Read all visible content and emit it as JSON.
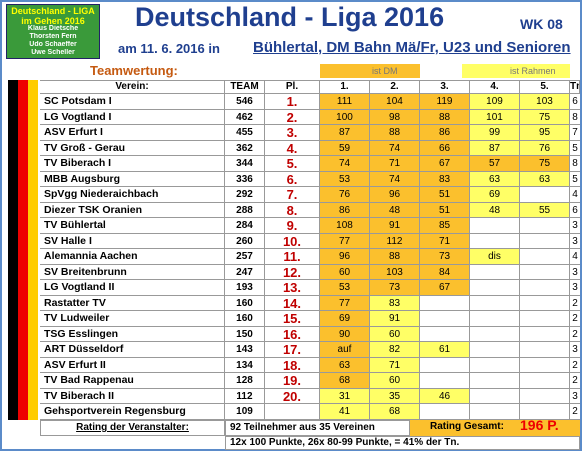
{
  "header": {
    "logo_lines": [
      "Deutschland - LIGA",
      "im Gehen 2016",
      "Klaus Dietsche",
      "Thorsten Fern",
      "Udo Schaeffer",
      "Uwe Scheller"
    ],
    "title": "Deutschland - Liga 2016",
    "wk": "WK 08",
    "date": "am 11. 6. 2016  in",
    "venue": "Bühlertal, DM Bahn Mä/Fr, U23 und Senioren"
  },
  "legend": {
    "label": "Teamwertung:",
    "dm": "ist DM",
    "rahmen": "ist Rahmen"
  },
  "table": {
    "columns": [
      "Verein:",
      "TEAM",
      "Pl.",
      "1.",
      "2.",
      "3.",
      "4.",
      "5.",
      "Tn."
    ],
    "rows": [
      [
        "SC Potsdam I",
        546,
        "1.",
        111,
        104,
        119,
        109,
        103,
        6
      ],
      [
        "LG Vogtland I",
        462,
        "2.",
        100,
        98,
        88,
        101,
        75,
        8
      ],
      [
        "ASV Erfurt I",
        455,
        "3.",
        87,
        88,
        86,
        99,
        95,
        7
      ],
      [
        "TV Groß - Gerau",
        362,
        "4.",
        59,
        74,
        66,
        87,
        76,
        5
      ],
      [
        "TV Biberach I",
        344,
        "5.",
        74,
        71,
        67,
        57,
        75,
        8
      ],
      [
        "MBB Augsburg",
        336,
        "6.",
        53,
        74,
        83,
        63,
        63,
        5
      ],
      [
        "SpVgg Niederaichbach",
        292,
        "7.",
        76,
        96,
        51,
        69,
        null,
        4
      ],
      [
        "Diezer TSK Oranien",
        288,
        "8.",
        86,
        48,
        51,
        48,
        55,
        6
      ],
      [
        "TV Bühlertal",
        284,
        "9.",
        108,
        91,
        85,
        null,
        null,
        3
      ],
      [
        "SV Halle I",
        260,
        "10.",
        77,
        112,
        71,
        null,
        null,
        3
      ],
      [
        "Alemannia Aachen",
        257,
        "11.",
        96,
        88,
        73,
        "dis",
        null,
        4
      ],
      [
        "SV Breitenbrunn",
        247,
        "12.",
        60,
        103,
        84,
        null,
        null,
        3
      ],
      [
        "LG Vogtland II",
        193,
        "13.",
        53,
        73,
        67,
        null,
        null,
        3
      ],
      [
        "Rastatter TV",
        160,
        "14.",
        77,
        83,
        null,
        null,
        null,
        2
      ],
      [
        "TV Ludweiler",
        160,
        "15.",
        69,
        91,
        null,
        null,
        null,
        2
      ],
      [
        "TSG Esslingen",
        150,
        "16.",
        90,
        60,
        null,
        null,
        null,
        2
      ],
      [
        "ART Düsseldorf",
        143,
        "17.",
        "auf",
        82,
        61,
        null,
        null,
        3
      ],
      [
        "ASV Erfurt II",
        134,
        "18.",
        63,
        71,
        null,
        null,
        null,
        2
      ],
      [
        "TV Bad Rappenau",
        128,
        "19.",
        68,
        60,
        null,
        null,
        null,
        2
      ],
      [
        "TV Biberach II",
        112,
        "20.",
        31,
        35,
        46,
        null,
        null,
        3
      ],
      [
        "Gehsportverein Regensburg",
        109,
        null,
        41,
        68,
        null,
        null,
        null,
        2
      ]
    ]
  },
  "footer": {
    "rating_label": "Rating der Veranstalter:",
    "participants": "92 Teilnehmer aus 35 Vereinen",
    "rating_total_label": "Rating  Gesamt:",
    "rating_total": "196 P.",
    "points_summary": "12x 100 Punkte, 26x 80-99 Punkte, = 41% der Tn."
  }
}
